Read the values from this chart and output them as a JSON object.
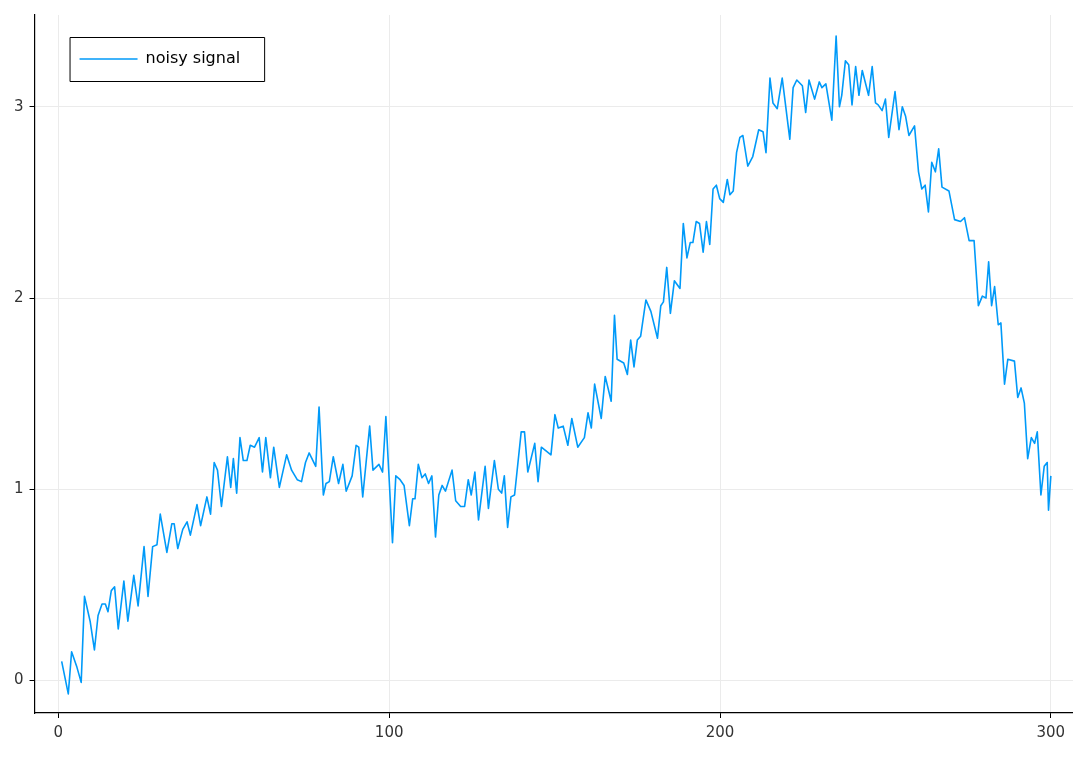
{
  "chart_data": {
    "type": "line",
    "xlim": [
      -7.2,
      306.7
    ],
    "ylim": [
      -0.17,
      3.48
    ],
    "xticks": [
      0,
      100,
      200,
      300
    ],
    "yticks": [
      0,
      1,
      2,
      3
    ],
    "grid": true,
    "legend": "top left",
    "series": [
      {
        "name": "noisy signal",
        "color": "#009af9",
        "x": [
          1,
          3,
          4,
          5.6,
          6.9,
          7.9,
          9.6,
          10.9,
          12,
          13.2,
          14.2,
          15,
          16,
          17,
          18.1,
          19.8,
          21,
          22.8,
          24.1,
          25.9,
          27.1,
          28.5,
          29.8,
          30.8,
          32.8,
          34.3,
          35,
          36.1,
          37.6,
          38.9,
          39.9,
          41.9,
          43,
          44.9,
          46,
          47.1,
          48.1,
          49.3,
          51.1,
          52.1,
          52.9,
          53.9,
          54.9,
          55.9,
          57,
          58,
          59.3,
          60.7,
          61.7,
          62.7,
          64.1,
          65.1,
          66.8,
          69,
          70.5,
          72.2,
          73.5,
          74.7,
          75.8,
          77.8,
          78.8,
          80.1,
          80.9,
          81.9,
          83.1,
          84.7,
          86,
          87,
          88.8,
          90,
          90.8,
          92,
          94.1,
          95.1,
          96.9,
          98,
          99,
          101,
          102,
          103.3,
          104.5,
          106.1,
          107.1,
          107.8,
          108.8,
          109.9,
          110.9,
          111.9,
          112.9,
          114,
          115,
          116,
          117,
          119,
          120.1,
          121.6,
          122.8,
          123.9,
          124.8,
          125.9,
          127,
          129,
          130,
          131.8,
          133,
          134,
          134.8,
          135.8,
          136.8,
          137.9,
          139.9,
          140.9,
          141.9,
          144,
          145,
          146,
          148.9,
          150.1,
          151.1,
          152.6,
          154,
          155.2,
          157,
          159,
          160.1,
          161.1,
          162.1,
          164.1,
          165.3,
          167.1,
          168.1,
          168.9,
          170.9,
          172,
          173,
          174,
          175,
          176,
          177.6,
          179.1,
          181.1,
          182.1,
          182.9,
          183.9,
          185,
          186.2,
          187.9,
          188.9,
          190,
          191,
          191.8,
          192.8,
          193.8,
          194.9,
          195.9,
          196.9,
          197.9,
          198.9,
          199.9,
          201,
          202.2,
          203,
          204,
          205,
          206,
          206.9,
          208.4,
          209.9,
          211.7,
          213,
          213.9,
          215.1,
          216,
          217.3,
          218.8,
          221.1,
          222.1,
          223.2,
          224.9,
          225.9,
          226.9,
          228.6,
          230,
          230.8,
          232,
          233.8,
          235.1,
          236.1,
          236.8,
          237.9,
          238.9,
          239.9,
          241,
          242,
          243,
          244.9,
          246,
          247,
          247.8,
          249,
          250,
          251,
          252.9,
          254.1,
          255.1,
          256.1,
          257.1,
          258.8,
          260,
          261,
          262,
          263,
          264,
          265.1,
          266.1,
          267.1,
          269.2,
          270.9,
          272.7,
          273.9,
          275.3,
          276.8,
          278.1,
          279.3,
          280.4,
          281.2,
          282.1,
          283,
          284.1,
          284.9,
          286,
          287,
          289,
          290,
          291,
          292,
          293,
          294.1,
          295.1,
          295.9,
          297,
          298,
          298.9,
          299.3,
          300
        ],
        "values": [
          0.1,
          -0.07,
          0.15,
          0.07,
          -0.01,
          0.44,
          0.31,
          0.16,
          0.34,
          0.4,
          0.4,
          0.36,
          0.47,
          0.49,
          0.27,
          0.52,
          0.31,
          0.55,
          0.39,
          0.7,
          0.44,
          0.7,
          0.71,
          0.87,
          0.67,
          0.82,
          0.82,
          0.69,
          0.79,
          0.83,
          0.76,
          0.92,
          0.81,
          0.96,
          0.87,
          1.14,
          1.1,
          0.91,
          1.17,
          1.01,
          1.16,
          0.98,
          1.27,
          1.15,
          1.15,
          1.23,
          1.22,
          1.27,
          1.09,
          1.27,
          1.06,
          1.22,
          1.01,
          1.18,
          1.1,
          1.05,
          1.04,
          1.14,
          1.19,
          1.12,
          1.43,
          0.97,
          1.03,
          1.04,
          1.17,
          1.03,
          1.13,
          0.99,
          1.07,
          1.23,
          1.22,
          0.96,
          1.33,
          1.1,
          1.13,
          1.09,
          1.38,
          0.72,
          1.07,
          1.05,
          1.02,
          0.81,
          0.95,
          0.95,
          1.13,
          1.06,
          1.08,
          1.03,
          1.07,
          0.75,
          0.97,
          1.02,
          0.99,
          1.1,
          0.94,
          0.91,
          0.91,
          1.05,
          0.97,
          1.09,
          0.84,
          1.12,
          0.9,
          1.15,
          1.0,
          0.98,
          1.07,
          0.8,
          0.96,
          0.97,
          1.3,
          1.3,
          1.09,
          1.24,
          1.04,
          1.22,
          1.18,
          1.39,
          1.32,
          1.33,
          1.23,
          1.37,
          1.22,
          1.27,
          1.4,
          1.32,
          1.55,
          1.37,
          1.59,
          1.46,
          1.91,
          1.68,
          1.66,
          1.6,
          1.78,
          1.64,
          1.78,
          1.8,
          1.99,
          1.93,
          1.79,
          1.96,
          1.98,
          2.16,
          1.92,
          2.09,
          2.05,
          2.39,
          2.21,
          2.29,
          2.29,
          2.4,
          2.39,
          2.24,
          2.4,
          2.28,
          2.57,
          2.59,
          2.52,
          2.5,
          2.62,
          2.54,
          2.56,
          2.76,
          2.84,
          2.85,
          2.69,
          2.74,
          2.88,
          2.87,
          2.76,
          3.15,
          3.02,
          2.99,
          3.15,
          2.83,
          3.1,
          3.14,
          3.11,
          2.97,
          3.14,
          3.04,
          3.13,
          3.1,
          3.12,
          2.93,
          3.37,
          3.0,
          3.06,
          3.24,
          3.22,
          3.01,
          3.21,
          3.06,
          3.19,
          3.06,
          3.21,
          3.02,
          3.01,
          2.98,
          3.04,
          2.84,
          3.08,
          2.88,
          3.0,
          2.95,
          2.85,
          2.9,
          2.66,
          2.57,
          2.59,
          2.45,
          2.71,
          2.66,
          2.78,
          2.58,
          2.56,
          2.41,
          2.4,
          2.42,
          2.3,
          2.3,
          1.96,
          2.01,
          2.0,
          2.19,
          1.96,
          2.06,
          1.86,
          1.87,
          1.55,
          1.68,
          1.67,
          1.48,
          1.53,
          1.45,
          1.16,
          1.27,
          1.24,
          1.3,
          0.97,
          1.12,
          1.14,
          0.89,
          1.07
        ]
      }
    ]
  }
}
